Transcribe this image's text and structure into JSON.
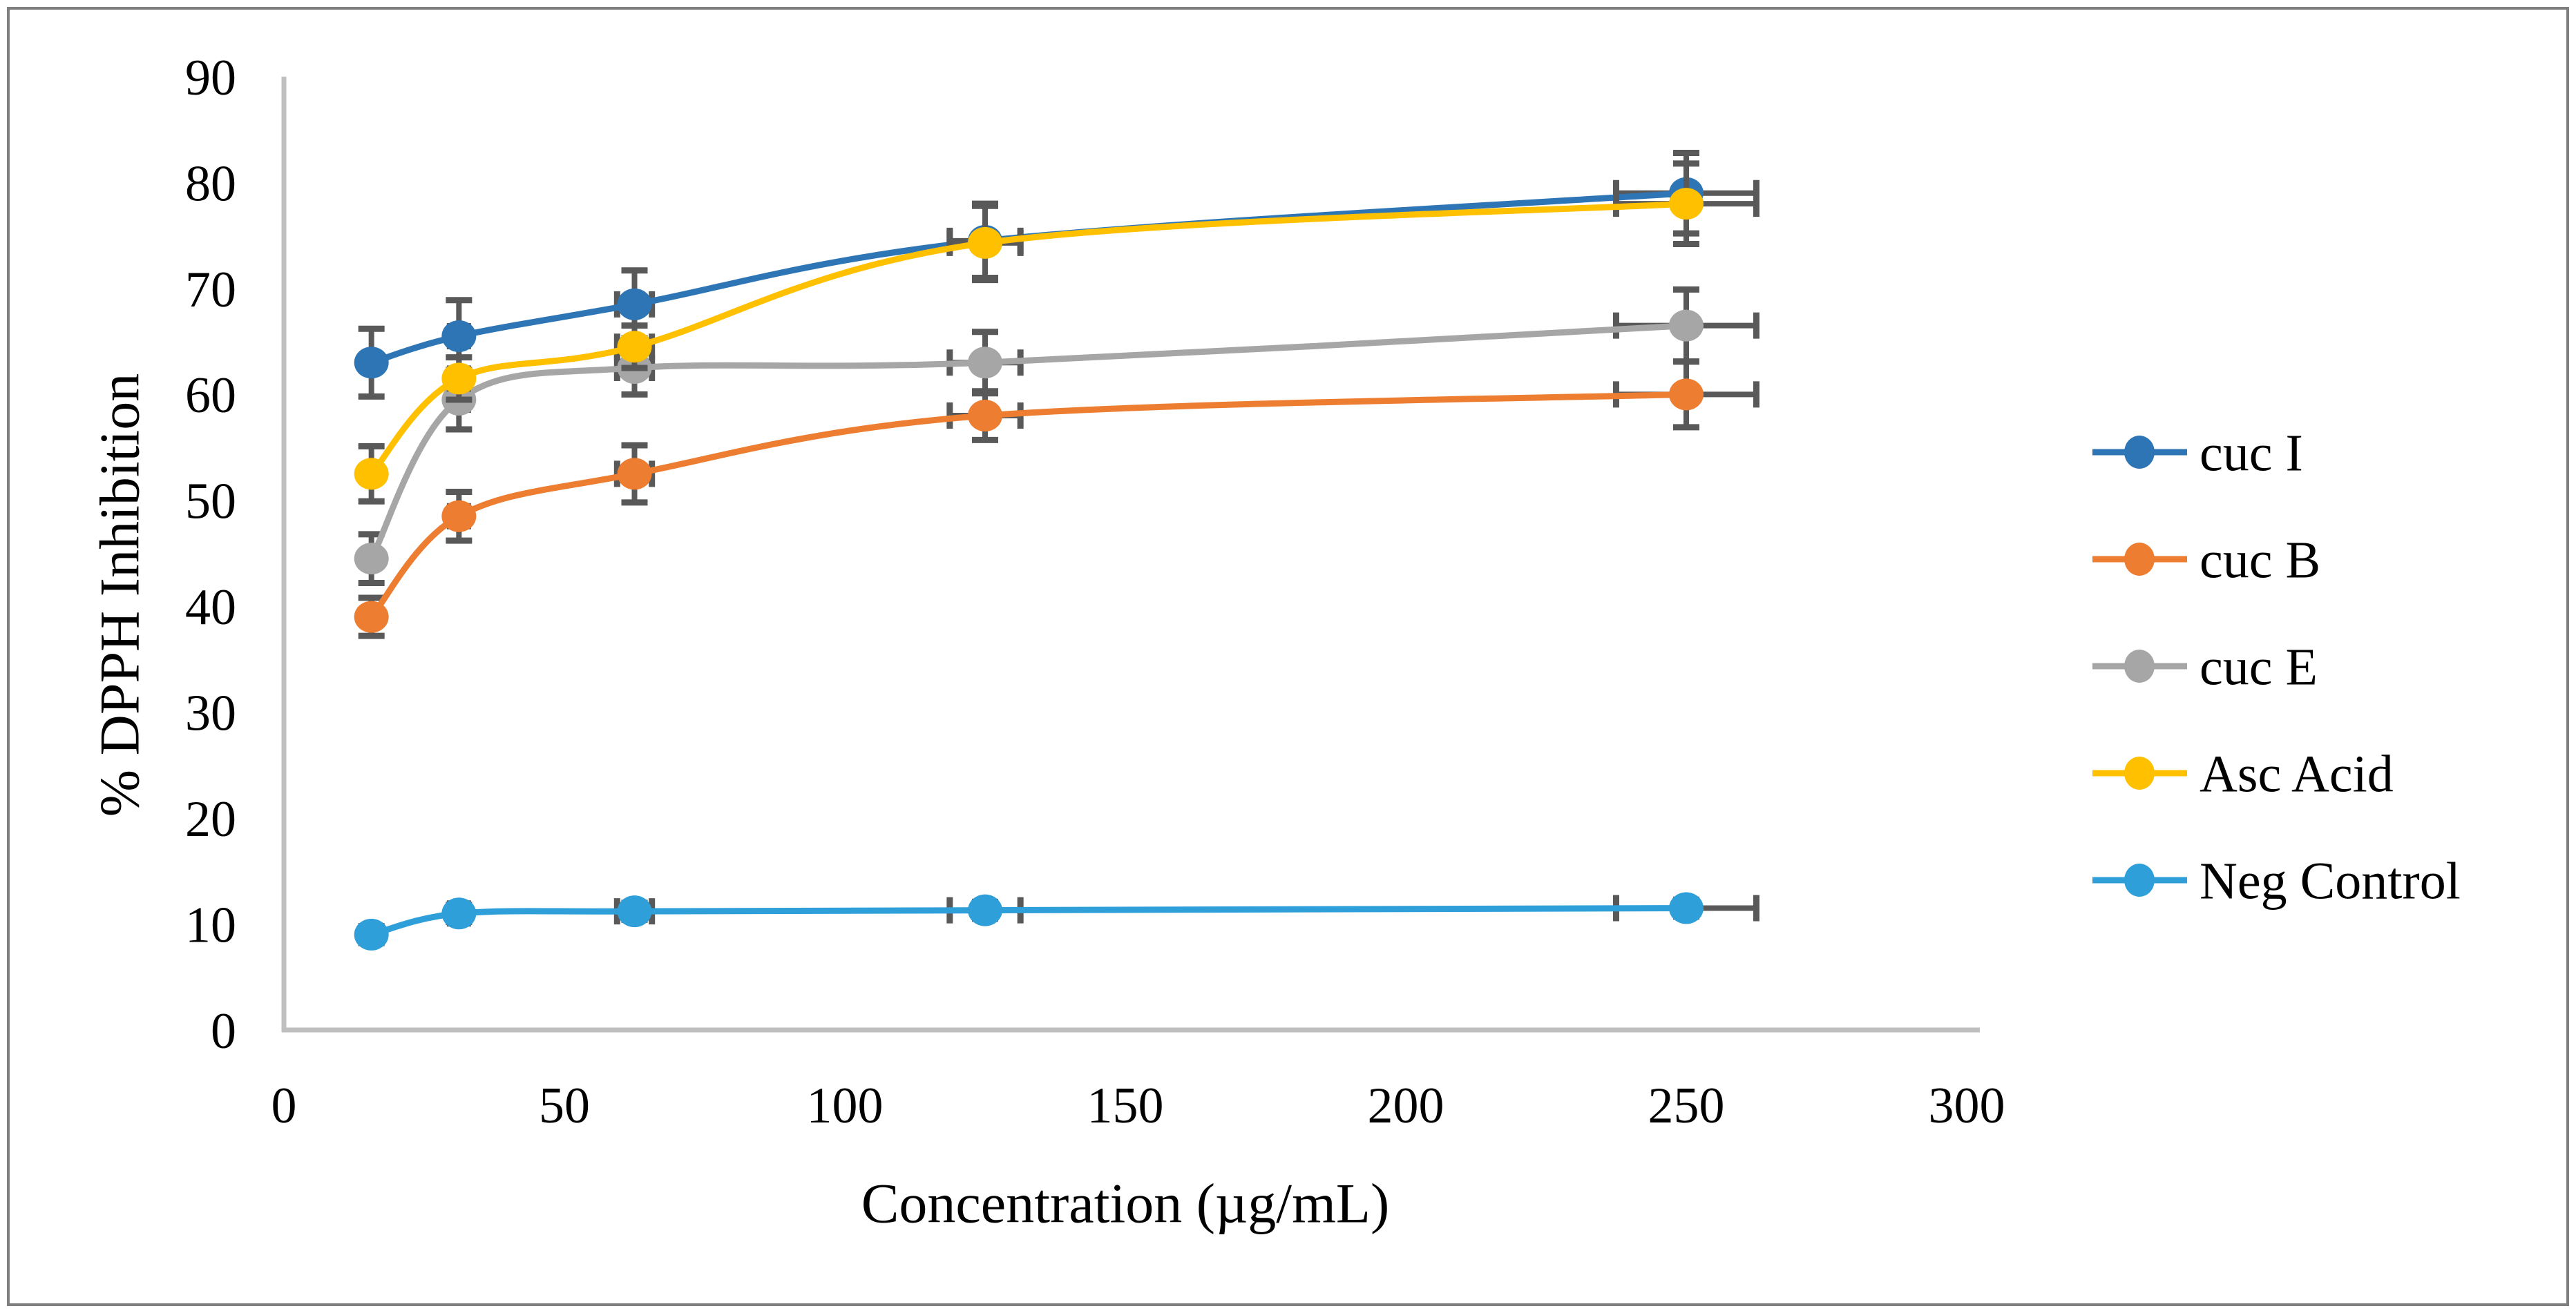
{
  "chart_data": {
    "type": "line",
    "title": "",
    "xlabel": "Concentration (µg/mL)",
    "ylabel": "% DPPH Inhibition",
    "x": [
      15.6,
      31.2,
      62.5,
      125,
      250
    ],
    "xlim": [
      0,
      300
    ],
    "ylim": [
      0,
      90
    ],
    "x_ticks": [
      0,
      50,
      100,
      150,
      200,
      250,
      300
    ],
    "y_ticks": [
      0,
      10,
      20,
      30,
      40,
      50,
      60,
      70,
      80,
      90
    ],
    "grid": false,
    "smooth_lines": true,
    "legend_position": "right",
    "marker": "circle",
    "axis_color": "#BFBFBF",
    "error_bar_color": "#595959",
    "text_color": "#000000",
    "series": [
      {
        "name": "cuc I",
        "color": "#2E75B6",
        "values": [
          63,
          65.5,
          68.5,
          74.5,
          79
        ],
        "y_err": [
          3.2,
          3.4,
          3.2,
          3.5,
          3.8
        ],
        "x_err": [
          0.8,
          1.6,
          3.1,
          6.3,
          12.5
        ]
      },
      {
        "name": "cuc B",
        "color": "#ED7D31",
        "values": [
          39,
          48.5,
          52.5,
          58,
          60
        ],
        "y_err": [
          1.8,
          2.3,
          2.7,
          2.3,
          3.1
        ],
        "x_err": [
          0.8,
          1.6,
          3.1,
          6.3,
          12.5
        ]
      },
      {
        "name": "cuc E",
        "color": "#A6A6A6",
        "values": [
          44.5,
          59.5,
          62.5,
          63,
          66.5
        ],
        "y_err": [
          2.3,
          2.8,
          2.5,
          2.9,
          3.4
        ],
        "x_err": [
          0.8,
          1.6,
          3.1,
          6.3,
          12.5
        ]
      },
      {
        "name": "Asc Acid",
        "color": "#FFC000",
        "values": [
          52.5,
          61.5,
          64.5,
          74.3,
          78
        ],
        "y_err": [
          2.6,
          2.0,
          2.0,
          3.5,
          3.8
        ],
        "x_err": [
          0.8,
          1.6,
          3.1,
          6.3,
          12.5
        ]
      },
      {
        "name": "Neg Control",
        "color": "#2E9FD9",
        "values": [
          9,
          11,
          11.2,
          11.3,
          11.5
        ],
        "y_err": [
          0.8,
          0.8,
          0.8,
          0.8,
          0.8
        ],
        "x_err": [
          0.8,
          1.6,
          3.1,
          6.3,
          12.5
        ]
      }
    ]
  }
}
